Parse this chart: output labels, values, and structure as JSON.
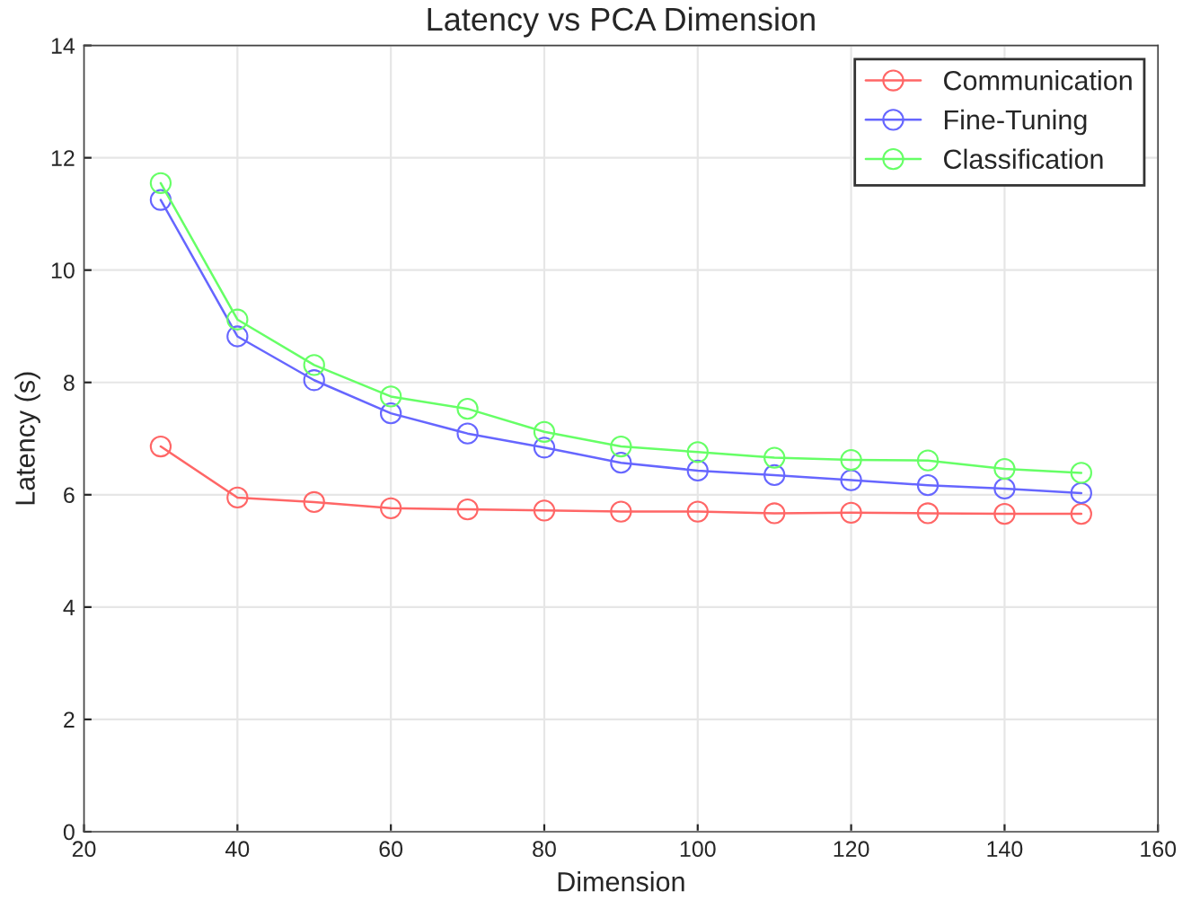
{
  "chart_data": {
    "type": "line",
    "title": "Latency vs PCA Dimension",
    "xlabel": "Dimension",
    "ylabel": "Latency (s)",
    "x": [
      30,
      40,
      50,
      60,
      70,
      80,
      90,
      100,
      110,
      120,
      130,
      140,
      150
    ],
    "series": [
      {
        "name": "Communication",
        "color": "#ff6666",
        "values": [
          6.86,
          5.95,
          5.87,
          5.76,
          5.74,
          5.72,
          5.7,
          5.7,
          5.67,
          5.68,
          5.67,
          5.66,
          5.66
        ]
      },
      {
        "name": "Fine-Tuning",
        "color": "#6666ff",
        "values": [
          11.25,
          8.82,
          8.04,
          7.45,
          7.09,
          6.84,
          6.57,
          6.43,
          6.35,
          6.26,
          6.17,
          6.11,
          6.03
        ]
      },
      {
        "name": "Classification",
        "color": "#66ff66",
        "values": [
          11.55,
          9.12,
          8.31,
          7.75,
          7.53,
          7.12,
          6.86,
          6.76,
          6.66,
          6.62,
          6.61,
          6.46,
          6.39
        ]
      }
    ],
    "xlim": [
      20,
      160
    ],
    "xticks": [
      20,
      40,
      60,
      80,
      100,
      120,
      140,
      160
    ],
    "ylim": [
      0,
      14
    ],
    "yticks": [
      0,
      2,
      4,
      6,
      8,
      10,
      12,
      14
    ],
    "grid": true,
    "legend": "top right",
    "marker": "circle",
    "line_style": "solid"
  }
}
